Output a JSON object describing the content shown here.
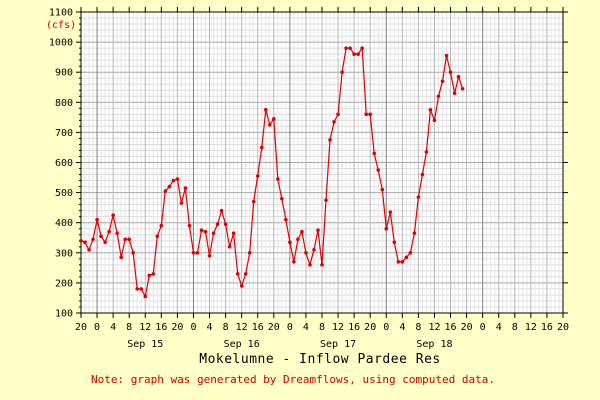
{
  "chart_data": {
    "type": "line",
    "title": "Mokelumne - Inflow Pardee Res",
    "note": "Note: graph was generated by Dreamflows, using computed data.",
    "ylabel": "(cfs)",
    "ylim": [
      100,
      1100
    ],
    "yticks": [
      100,
      200,
      300,
      400,
      500,
      600,
      700,
      800,
      900,
      1000,
      1100
    ],
    "xlim": [
      -4,
      116
    ],
    "hour_ticks": [
      {
        "x": -4,
        "label": "20"
      },
      {
        "x": 0,
        "label": "0"
      },
      {
        "x": 4,
        "label": "4"
      },
      {
        "x": 8,
        "label": "8"
      },
      {
        "x": 12,
        "label": "12"
      },
      {
        "x": 16,
        "label": "16"
      },
      {
        "x": 20,
        "label": "20"
      },
      {
        "x": 24,
        "label": "0"
      },
      {
        "x": 28,
        "label": "4"
      },
      {
        "x": 32,
        "label": "8"
      },
      {
        "x": 36,
        "label": "12"
      },
      {
        "x": 40,
        "label": "16"
      },
      {
        "x": 44,
        "label": "20"
      },
      {
        "x": 48,
        "label": "0"
      },
      {
        "x": 52,
        "label": "4"
      },
      {
        "x": 56,
        "label": "8"
      },
      {
        "x": 60,
        "label": "12"
      },
      {
        "x": 64,
        "label": "16"
      },
      {
        "x": 68,
        "label": "20"
      },
      {
        "x": 72,
        "label": "0"
      },
      {
        "x": 76,
        "label": "4"
      },
      {
        "x": 80,
        "label": "8"
      },
      {
        "x": 84,
        "label": "12"
      },
      {
        "x": 88,
        "label": "16"
      },
      {
        "x": 92,
        "label": "20"
      },
      {
        "x": 96,
        "label": "0"
      },
      {
        "x": 100,
        "label": "4"
      },
      {
        "x": 104,
        "label": "8"
      },
      {
        "x": 108,
        "label": "12"
      },
      {
        "x": 112,
        "label": "16"
      },
      {
        "x": 116,
        "label": "20"
      }
    ],
    "day_labels": [
      {
        "x": 12,
        "label": "Sep 15"
      },
      {
        "x": 36,
        "label": "Sep 16"
      },
      {
        "x": 60,
        "label": "Sep 17"
      },
      {
        "x": 84,
        "label": "Sep 18"
      }
    ],
    "grid": true,
    "line_color": "#dd0000",
    "series": [
      {
        "values": [
          [
            -4,
            340
          ],
          [
            -3,
            335
          ],
          [
            -2,
            310
          ],
          [
            -1,
            345
          ],
          [
            0,
            410
          ],
          [
            1,
            355
          ],
          [
            2,
            335
          ],
          [
            3,
            370
          ],
          [
            4,
            425
          ],
          [
            5,
            365
          ],
          [
            6,
            285
          ],
          [
            7,
            345
          ],
          [
            8,
            345
          ],
          [
            9,
            300
          ],
          [
            10,
            180
          ],
          [
            11,
            180
          ],
          [
            12,
            155
          ],
          [
            13,
            225
          ],
          [
            14,
            230
          ],
          [
            15,
            355
          ],
          [
            16,
            390
          ],
          [
            17,
            505
          ],
          [
            18,
            520
          ],
          [
            19,
            540
          ],
          [
            20,
            545
          ],
          [
            21,
            465
          ],
          [
            22,
            515
          ],
          [
            23,
            390
          ],
          [
            24,
            300
          ],
          [
            25,
            300
          ],
          [
            26,
            375
          ],
          [
            27,
            370
          ],
          [
            28,
            290
          ],
          [
            29,
            365
          ],
          [
            30,
            395
          ],
          [
            31,
            440
          ],
          [
            32,
            395
          ],
          [
            33,
            320
          ],
          [
            34,
            365
          ],
          [
            35,
            230
          ],
          [
            36,
            190
          ],
          [
            37,
            230
          ],
          [
            38,
            300
          ],
          [
            39,
            470
          ],
          [
            40,
            555
          ],
          [
            41,
            650
          ],
          [
            42,
            775
          ],
          [
            43,
            725
          ],
          [
            44,
            745
          ],
          [
            45,
            545
          ],
          [
            46,
            480
          ],
          [
            47,
            410
          ],
          [
            48,
            335
          ],
          [
            49,
            270
          ],
          [
            50,
            345
          ],
          [
            51,
            370
          ],
          [
            52,
            300
          ],
          [
            53,
            260
          ],
          [
            54,
            310
          ],
          [
            55,
            375
          ],
          [
            56,
            260
          ],
          [
            57,
            475
          ],
          [
            58,
            675
          ],
          [
            59,
            735
          ],
          [
            60,
            760
          ],
          [
            61,
            900
          ],
          [
            62,
            980
          ],
          [
            63,
            980
          ],
          [
            64,
            960
          ],
          [
            65,
            960
          ],
          [
            66,
            980
          ],
          [
            67,
            760
          ],
          [
            68,
            760
          ],
          [
            69,
            630
          ],
          [
            70,
            575
          ],
          [
            71,
            510
          ],
          [
            72,
            380
          ],
          [
            73,
            435
          ],
          [
            74,
            335
          ],
          [
            75,
            270
          ],
          [
            76,
            270
          ],
          [
            77,
            285
          ],
          [
            78,
            300
          ],
          [
            79,
            365
          ],
          [
            80,
            485
          ],
          [
            81,
            560
          ],
          [
            82,
            635
          ],
          [
            83,
            775
          ],
          [
            84,
            740
          ],
          [
            85,
            820
          ],
          [
            86,
            870
          ],
          [
            87,
            955
          ],
          [
            88,
            900
          ],
          [
            89,
            830
          ],
          [
            90,
            885
          ],
          [
            91,
            845
          ]
        ]
      }
    ]
  }
}
